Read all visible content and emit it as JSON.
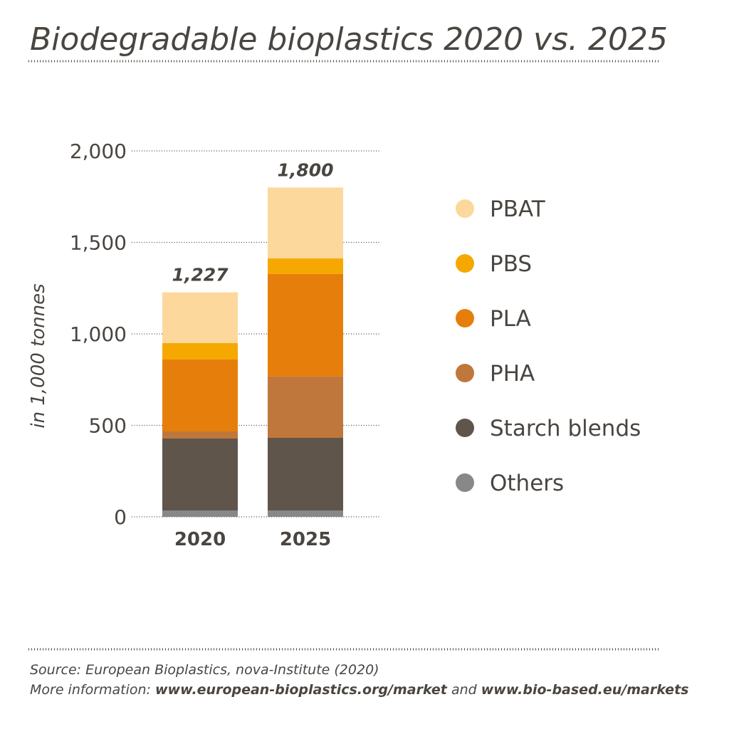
{
  "chart_data": {
    "type": "stacked-bar",
    "title": "Biodegradable bioplastics 2020 vs. 2025",
    "y_label": "in 1,000 tonnes",
    "categories": [
      "2020",
      "2025"
    ],
    "series": [
      {
        "name": "Others",
        "color": "#87888a",
        "values": [
          35,
          35
        ]
      },
      {
        "name": "Starch blends",
        "color": "#5f554b",
        "values": [
          393,
          397
        ]
      },
      {
        "name": "PHA",
        "color": "#c0773b",
        "values": [
          39,
          335
        ]
      },
      {
        "name": "PLA",
        "color": "#e67e0c",
        "values": [
          393,
          560
        ]
      },
      {
        "name": "PBS",
        "color": "#f5a800",
        "values": [
          90,
          86
        ]
      },
      {
        "name": "PBAT",
        "color": "#fdd89c",
        "values": [
          277,
          387
        ]
      }
    ],
    "totals": [
      1227,
      1800
    ],
    "total_labels": [
      "1,227",
      "1,800"
    ],
    "ylim": [
      0,
      2000
    ],
    "yticks": [
      0,
      500,
      {
        "value": 1000,
        "label": "1,000"
      },
      {
        "value": 1500,
        "label": "1,500"
      },
      {
        "value": 2000,
        "label": "2,000"
      }
    ],
    "grid": true
  },
  "footer": {
    "source": "Source: European Bioplastics, nova-Institute (2020)",
    "more_prefix": "More information: ",
    "link1": "www.european-bioplastics.org/market",
    "conjunction": " and ",
    "link2": "www.bio-based.eu/markets"
  }
}
